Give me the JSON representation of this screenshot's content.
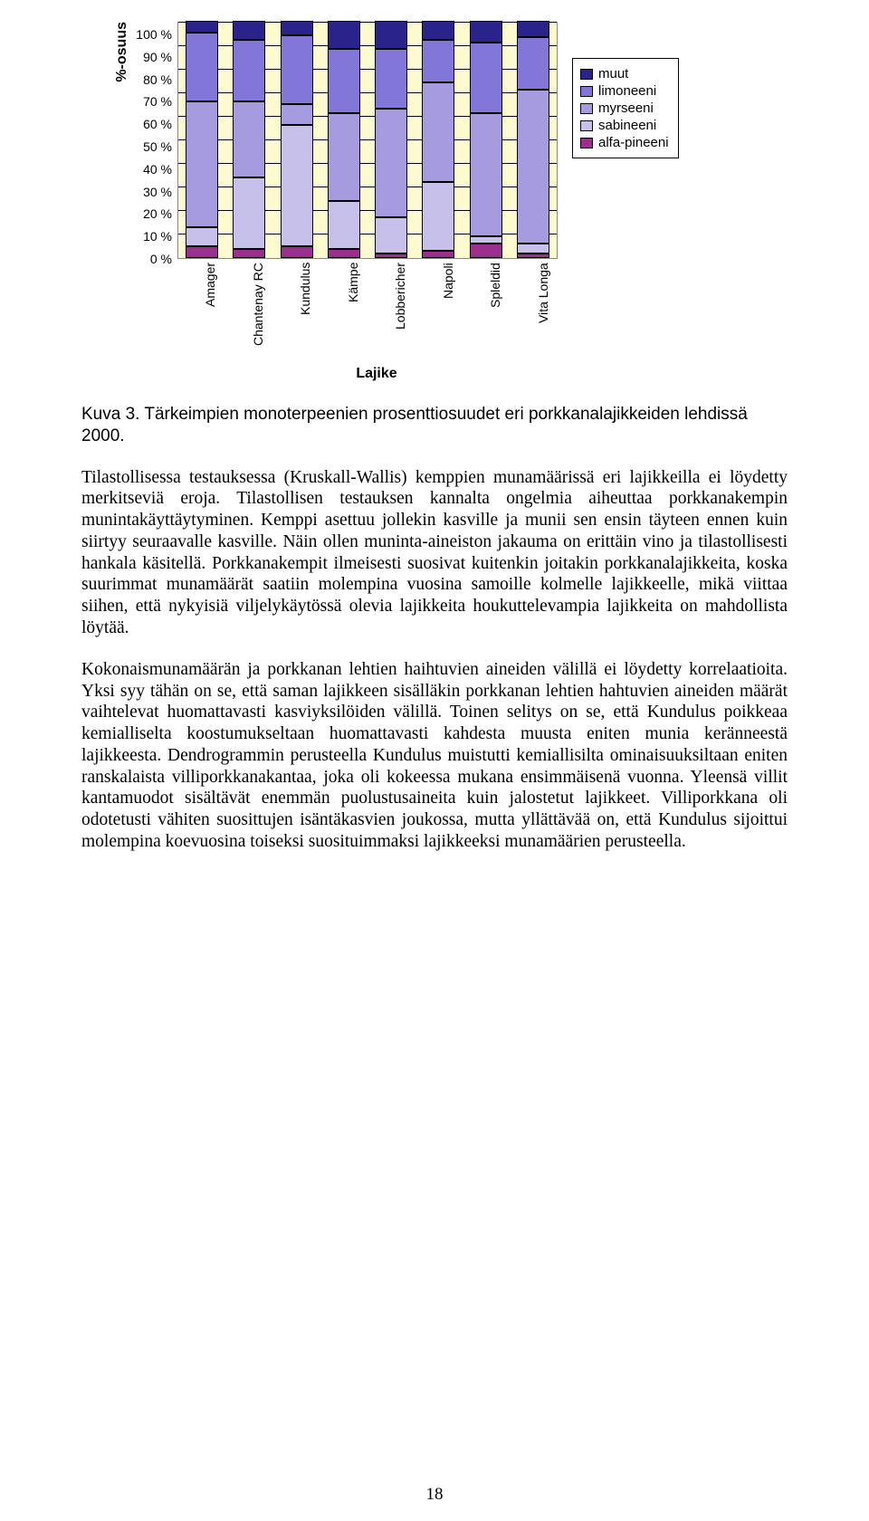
{
  "chart": {
    "type": "stacked-bar",
    "ylabel": "%-osuus",
    "xlabel": "Lajike",
    "ylim": [
      0,
      100
    ],
    "ytick_step": 10,
    "yticks": [
      "0 %",
      "10 %",
      "20 %",
      "30 %",
      "40 %",
      "50 %",
      "60 %",
      "70 %",
      "80 %",
      "90 %",
      "100 %"
    ],
    "plot_bg": "#fdfad0",
    "grid_color": "#000000",
    "categories": [
      "Amager",
      "Chantenay RC",
      "Kundulus",
      "Kämpe",
      "Lobbericher",
      "Napoli",
      "Spleldid",
      "Vita Longa"
    ],
    "series": [
      {
        "key": "alfa-pineeni",
        "label": "alfa-pineeni",
        "color": "#9b2f8e"
      },
      {
        "key": "sabineeni",
        "label": "sabineeni",
        "color": "#c6c0ea"
      },
      {
        "key": "myrseeni",
        "label": "myrseeni",
        "color": "#a79be0"
      },
      {
        "key": "limoneeni",
        "label": "limoneeni",
        "color": "#8276d8"
      },
      {
        "key": "muut",
        "label": "muut",
        "color": "#2b238c"
      }
    ],
    "legend_order": [
      "muut",
      "limoneeni",
      "myrseeni",
      "sabineeni",
      "alfa-pineeni"
    ],
    "data": {
      "Amager": {
        "alfa-pineeni": 5,
        "sabineeni": 8,
        "myrseeni": 53,
        "limoneeni": 29,
        "muut": 5
      },
      "Chantenay RC": {
        "alfa-pineeni": 4,
        "sabineeni": 30,
        "myrseeni": 32,
        "limoneeni": 26,
        "muut": 8
      },
      "Kundulus": {
        "alfa-pineeni": 5,
        "sabineeni": 51,
        "myrseeni": 9,
        "limoneeni": 29,
        "muut": 6
      },
      "Kämpe": {
        "alfa-pineeni": 4,
        "sabineeni": 20,
        "myrseeni": 37,
        "limoneeni": 27,
        "muut": 12
      },
      "Lobbericher": {
        "alfa-pineeni": 2,
        "sabineeni": 15,
        "myrseeni": 46,
        "limoneeni": 25,
        "muut": 12
      },
      "Napoli": {
        "alfa-pineeni": 3,
        "sabineeni": 29,
        "myrseeni": 42,
        "limoneeni": 18,
        "muut": 8
      },
      "Spleldid": {
        "alfa-pineeni": 6,
        "sabineeni": 3,
        "myrseeni": 52,
        "limoneeni": 30,
        "muut": 9
      },
      "Vita Longa": {
        "alfa-pineeni": 2,
        "sabineeni": 4,
        "myrseeni": 65,
        "limoneeni": 22,
        "muut": 7
      }
    }
  },
  "caption": "Kuva 3. Tärkeimpien monoterpeenien prosenttiosuudet eri porkkanalajikkeiden lehdissä 2000.",
  "paragraphs": [
    "Tilastollisessa testauksessa (Kruskall-Wallis) kemppien munamäärissä eri lajikkeilla ei löydetty merkitseviä eroja. Tilastollisen testauksen kannalta ongelmia aiheuttaa porkkanakempin munintakäyttäytyminen. Kemppi asettuu jollekin kasville ja munii sen ensin täyteen ennen kuin siirtyy seuraavalle kasville. Näin ollen muninta-aineiston jakauma on erittäin vino ja tilastollisesti hankala käsitellä. Porkkanakempit ilmeisesti suosivat kuitenkin joitakin porkkanalajikkeita, koska suurimmat munamäärät saatiin molempina vuosina samoille kolmelle lajikkeelle, mikä viittaa siihen, että nykyisiä viljelykäytössä olevia lajikkeita houkuttelevampia lajikkeita on mahdollista löytää.",
    "Kokonaismunamäärän ja porkkanan lehtien haihtuvien aineiden välillä ei löydetty korrelaatioita. Yksi syy tähän on se, että saman lajikkeen sisälläkin porkkanan lehtien hahtuvien aineiden määrät vaihtelevat huomattavasti kasviyksilöiden välillä. Toinen selitys on se, että Kundulus poikkeaa kemialliselta koostumukseltaan huomattavasti kahdesta muusta eniten munia keränneestä lajikkeesta. Dendrogrammin perusteella Kundulus muistutti kemiallisilta ominaisuuksiltaan eniten ranskalaista villiporkkanakantaa, joka oli kokeessa mukana ensimmäisenä vuonna. Yleensä villit kantamuodot sisältävät enemmän puolustusaineita kuin jalostetut lajikkeet. Villiporkkana oli odotetusti vähiten suosittujen isäntäkasvien joukossa, mutta yllättävää on, että Kundulus sijoittui molempina koevuosina toiseksi suosituimmaksi lajikkeeksi munamäärien perusteella."
  ],
  "page_number": "18"
}
